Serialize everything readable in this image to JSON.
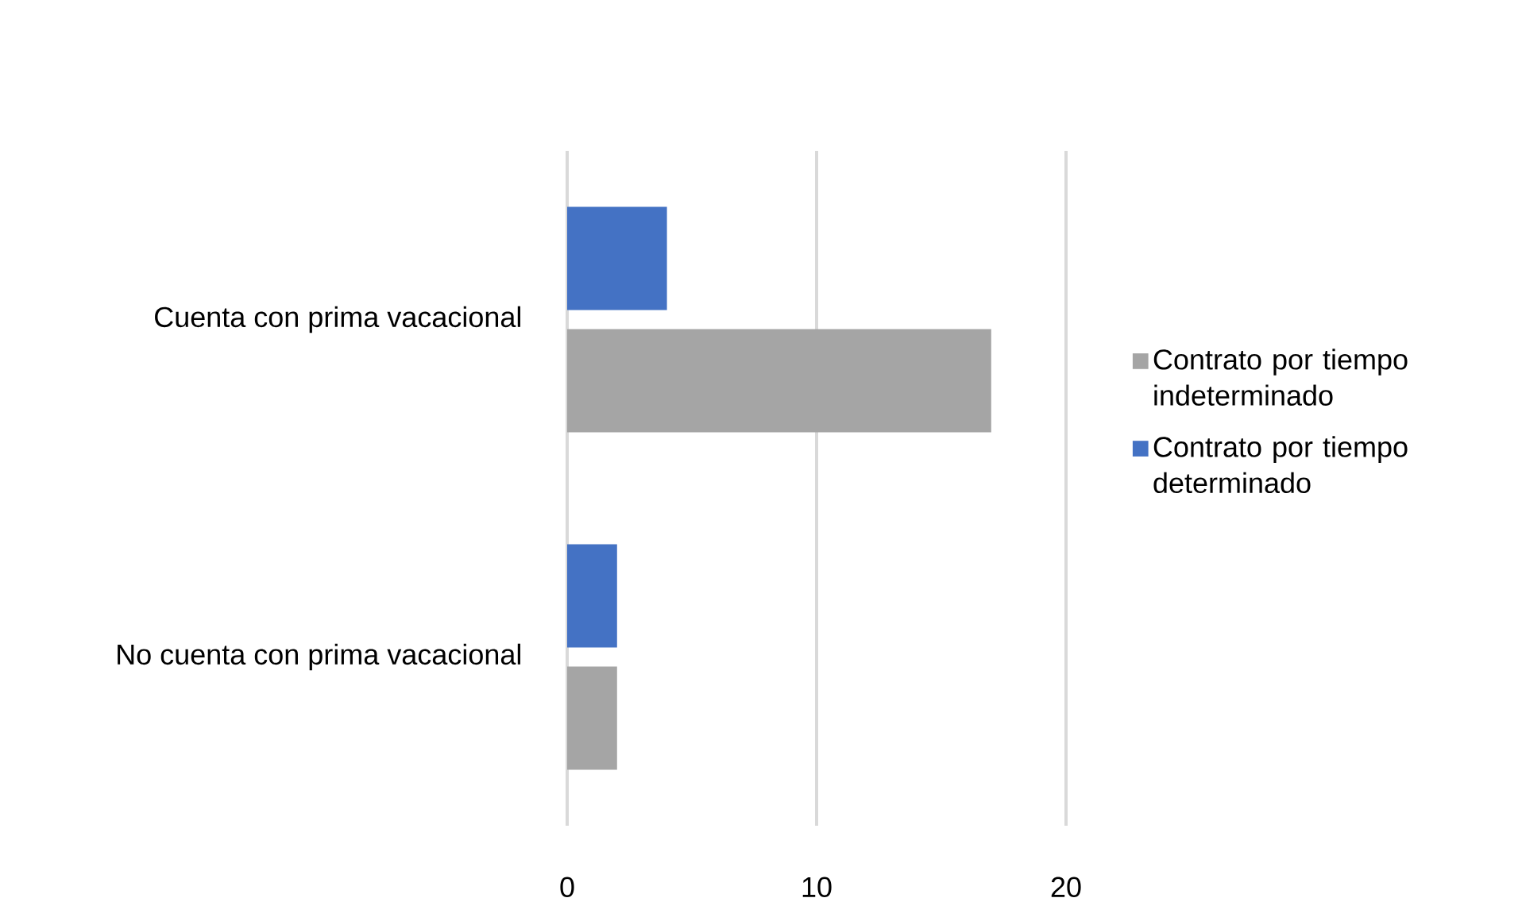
{
  "chart_data": {
    "type": "bar",
    "orientation": "horizontal",
    "categories": [
      "Cuenta con prima vacacional",
      "No cuenta con prima vacacional"
    ],
    "series": [
      {
        "name": "Contrato por tiempo indeterminado",
        "color": "#a5a5a5",
        "values": [
          17,
          2
        ]
      },
      {
        "name": "Contrato por tiempo determinado",
        "color": "#4472c4",
        "values": [
          4,
          2
        ]
      }
    ],
    "xlim": [
      0,
      20
    ],
    "xticks": [
      0,
      10,
      20
    ],
    "grid": "x",
    "legend": "right"
  }
}
